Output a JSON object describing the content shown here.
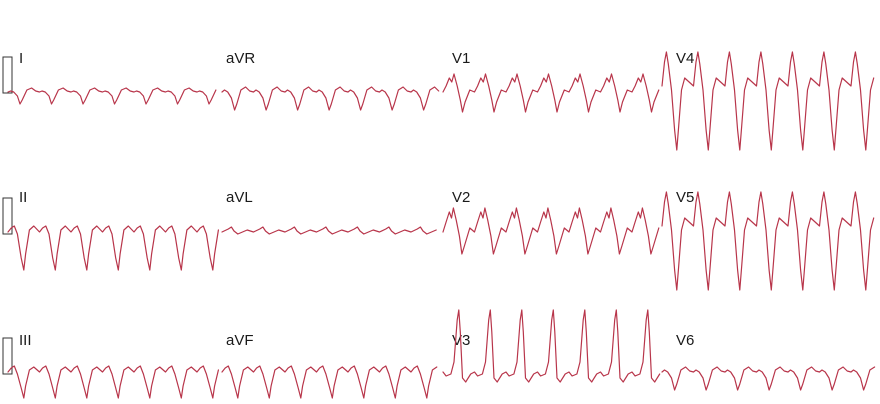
{
  "ecg": {
    "colors": {
      "trace": "#b8354a",
      "label": "#1a1a1a",
      "background": "#ffffff"
    },
    "rows": [
      {
        "leads": [
          {
            "label": "I",
            "pattern": "small-negative"
          },
          {
            "label": "aVR",
            "pattern": "small-negative-mid"
          },
          {
            "label": "V1",
            "pattern": "v1"
          },
          {
            "label": "V4",
            "pattern": "large-biphasic"
          }
        ]
      },
      {
        "leads": [
          {
            "label": "II",
            "pattern": "negative-deep"
          },
          {
            "label": "aVL",
            "pattern": "flat"
          },
          {
            "label": "V2",
            "pattern": "v2"
          },
          {
            "label": "V5",
            "pattern": "large-biphasic"
          }
        ]
      },
      {
        "leads": [
          {
            "label": "III",
            "pattern": "negative-mid"
          },
          {
            "label": "aVF",
            "pattern": "negative-mid"
          },
          {
            "label": "V3",
            "pattern": "positive-tall"
          },
          {
            "label": "V6",
            "pattern": "small-negative-mid"
          }
        ]
      }
    ]
  }
}
